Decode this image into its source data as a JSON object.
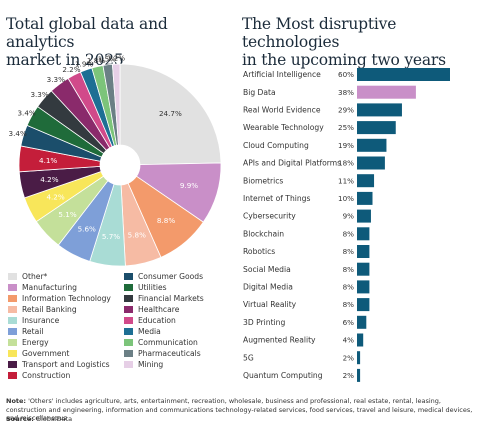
{
  "chart_data": [
    {
      "type": "pie",
      "title": "Total global data and analytics\nmarket in 2025",
      "style": "donut",
      "slices": [
        {
          "name": "Other*",
          "value": 24.7,
          "label": "24.7%",
          "color": "#e1e1e1"
        },
        {
          "name": "Manufacturing",
          "value": 9.9,
          "label": "9.9%",
          "color": "#c98fc8"
        },
        {
          "name": "Information Technology",
          "value": 8.8,
          "label": "8.8%",
          "color": "#f39a6b"
        },
        {
          "name": "Retail Banking",
          "value": 5.8,
          "label": "5.8%",
          "color": "#f6bba4"
        },
        {
          "name": "Insurance",
          "value": 5.7,
          "label": "5.7%",
          "color": "#a9dcd5"
        },
        {
          "name": "Retail",
          "value": 5.6,
          "label": "5.6%",
          "color": "#7e9fd8"
        },
        {
          "name": "Energy",
          "value": 5.1,
          "label": "5.1%",
          "color": "#c4e09a"
        },
        {
          "name": "Government",
          "value": 4.2,
          "label": "4.2%",
          "color": "#f8e65a"
        },
        {
          "name": "Transport and Logistics",
          "value": 4.2,
          "label": "4.2%",
          "color": "#4a1c46"
        },
        {
          "name": "Construction",
          "value": 4.1,
          "label": "4.1%",
          "color": "#c41e3a"
        },
        {
          "name": "Consumer Goods",
          "value": 3.4,
          "label": "3.4%",
          "color": "#1b4e6b"
        },
        {
          "name": "Utilities",
          "value": 3.4,
          "label": "3.4%",
          "color": "#1f6b3a"
        },
        {
          "name": "Financial Markets",
          "value": 3.3,
          "label": "3.3%",
          "color": "#333a3f"
        },
        {
          "name": "Healthcare",
          "value": 3.3,
          "label": "3.3%",
          "color": "#8a2a6b"
        },
        {
          "name": "Education",
          "value": 2.2,
          "label": "2.2%",
          "color": "#d14a8a"
        },
        {
          "name": "Media",
          "value": 1.9,
          "label": "1.9%",
          "color": "#1d6f94"
        },
        {
          "name": "Communication",
          "value": 1.8,
          "label": "1.8%",
          "color": "#7cc47a"
        },
        {
          "name": "Pharmaceuticals",
          "value": 1.5,
          "label": "1.5%",
          "color": "#6b7f85"
        },
        {
          "name": "Mining",
          "value": 1.2,
          "label": "1.2%",
          "color": "#e6cfe6"
        }
      ]
    },
    {
      "type": "bar",
      "orientation": "horizontal",
      "title": "The Most disruptive technologies\nin the upcoming two years",
      "categories": [
        "Artificial Intelligence",
        "Big Data",
        "Real World Evidence",
        "Wearable Technology",
        "Cloud Computing",
        "APIs and Digital Platforms",
        "Biometrics",
        "Internet of Things",
        "Cybersecurity",
        "Blockchain",
        "Robotics",
        "Social Media",
        "Digital Media",
        "Virtual Reality",
        "3D Printing",
        "Augmented Reality",
        "5G",
        "Quantum Computing"
      ],
      "values": [
        60,
        38,
        29,
        25,
        19,
        18,
        11,
        10,
        9,
        8,
        8,
        8,
        8,
        8,
        6,
        4,
        2,
        2
      ],
      "labels": [
        "60%",
        "38%",
        "29%",
        "25%",
        "19%",
        "18%",
        "11%",
        "10%",
        "9%",
        "8%",
        "8%",
        "8%",
        "8%",
        "8%",
        "6%",
        "4%",
        "2%",
        "2%"
      ],
      "highlight_index": 1,
      "colors": {
        "default": "#0e5a7a",
        "highlight": "#c98fc8"
      }
    }
  ],
  "legend_left": [
    "Other*",
    "Manufacturing",
    "Information Technology",
    "Retail Banking",
    "Insurance",
    "Retail",
    "Energy",
    "Government",
    "Transport and Logistics",
    "Construction"
  ],
  "legend_right": [
    "Consumer Goods",
    "Utilities",
    "Financial Markets",
    "Healthcare",
    "Education",
    "Media",
    "Communication",
    "Pharmaceuticals",
    "Mining"
  ],
  "note": {
    "label": "Note:",
    "text": " 'Others' includes agriculture, arts, entertainment, recreation, wholesale, business and professional, real estate, rental, leasing, construction and engineering, information and communications technology-related services, food services, travel and leisure, medical devices, and miscellaneous"
  },
  "source": {
    "label": "Source:",
    "text": " GlobalData"
  }
}
